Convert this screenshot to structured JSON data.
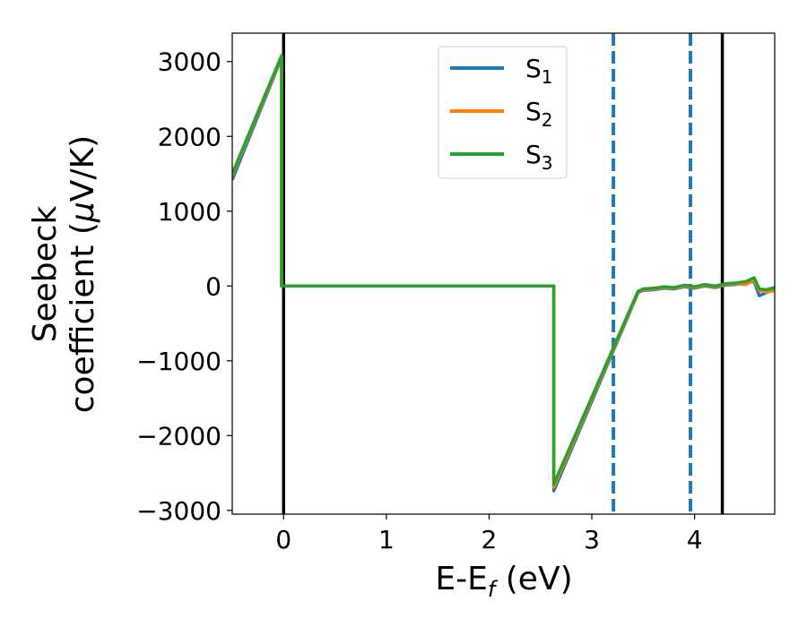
{
  "chart_data": {
    "type": "line",
    "xlabel": {
      "main": "E-E",
      "sub": "f",
      "suffix": " (eV)"
    },
    "ylabel": {
      "line1": "Seebeck",
      "line2_pre": "coefficient  (",
      "mu": "μ",
      "line2_post": "V/K)"
    },
    "xlim": [
      -0.5,
      4.78
    ],
    "ylim": [
      -3050,
      3380
    ],
    "xticks": [
      0,
      1,
      2,
      3,
      4
    ],
    "xtick_labels": [
      "0",
      "1",
      "2",
      "3",
      "4"
    ],
    "yticks": [
      3000,
      2000,
      1000,
      0,
      -1000,
      -2000,
      -3000
    ],
    "ytick_labels": [
      "3000",
      "2000",
      "1000",
      "0",
      "−1000",
      "−2000",
      "−3000"
    ],
    "grid": false,
    "legend_position": "upper-center",
    "vlines_solid": [
      0.0,
      4.27
    ],
    "vlines_dashed": [
      3.21,
      3.96
    ],
    "vline_solid_color": "#000000",
    "vline_dashed_color": "#1f77b4",
    "series": [
      {
        "name": "S",
        "sub": "1",
        "color": "#1f77b4",
        "x": [
          -0.5,
          -0.02,
          -0.02,
          2.63,
          2.63,
          3.45,
          3.5,
          3.6,
          3.7,
          3.8,
          3.9,
          4.0,
          4.1,
          4.2,
          4.3,
          4.4,
          4.5,
          4.58,
          4.63,
          4.7,
          4.78
        ],
        "y": [
          1420,
          3050,
          0,
          0,
          -2740,
          -90,
          -60,
          -50,
          -30,
          -40,
          -10,
          -30,
          0,
          -20,
          10,
          20,
          40,
          60,
          -130,
          -90,
          -40
        ]
      },
      {
        "name": "S",
        "sub": "2",
        "color": "#ff7f0e",
        "x": [
          -0.5,
          -0.02,
          -0.02,
          2.63,
          2.63,
          3.45,
          3.5,
          3.6,
          3.7,
          3.8,
          3.9,
          4.0,
          4.1,
          4.2,
          4.3,
          4.4,
          4.5,
          4.58,
          4.63,
          4.7,
          4.78
        ],
        "y": [
          1480,
          3060,
          0,
          0,
          -2690,
          -80,
          -50,
          -40,
          -20,
          -30,
          0,
          -20,
          10,
          -10,
          20,
          30,
          20,
          80,
          -60,
          -80,
          -60
        ]
      },
      {
        "name": "S",
        "sub": "3",
        "color": "#2ca02c",
        "x": [
          -0.5,
          -0.02,
          -0.02,
          2.63,
          2.63,
          3.45,
          3.5,
          3.6,
          3.7,
          3.8,
          3.9,
          4.0,
          4.1,
          4.2,
          4.3,
          4.4,
          4.5,
          4.58,
          4.63,
          4.7,
          4.78
        ],
        "y": [
          1500,
          3080,
          0,
          0,
          -2650,
          -70,
          -40,
          -30,
          -10,
          -20,
          10,
          -10,
          20,
          0,
          30,
          40,
          60,
          110,
          -40,
          -50,
          -20
        ]
      }
    ]
  }
}
